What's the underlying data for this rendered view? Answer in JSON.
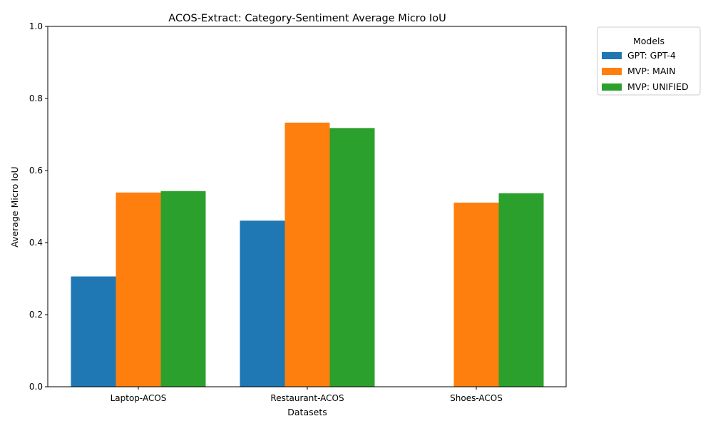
{
  "chart_data": {
    "type": "bar",
    "title": "ACOS-Extract: Category-Sentiment Average Micro IoU",
    "xlabel": "Datasets",
    "ylabel": "Average Micro IoU",
    "ylim": [
      0,
      1.0
    ],
    "yticks": [
      "0.0",
      "0.2",
      "0.4",
      "0.6",
      "0.8",
      "1.0"
    ],
    "categories": [
      "Laptop-ACOS",
      "Restaurant-ACOS",
      "Shoes-ACOS"
    ],
    "legend": {
      "title": "Models",
      "placement": "outside-top-right"
    },
    "series": [
      {
        "name": "GPT: GPT-4",
        "color": "#1f77b4",
        "values": [
          0.306,
          0.461,
          null
        ]
      },
      {
        "name": "MVP: MAIN",
        "color": "#ff7f0e",
        "values": [
          0.539,
          0.733,
          0.511
        ]
      },
      {
        "name": "MVP: UNIFIED",
        "color": "#2ca02c",
        "values": [
          0.543,
          0.718,
          0.537
        ]
      }
    ]
  }
}
